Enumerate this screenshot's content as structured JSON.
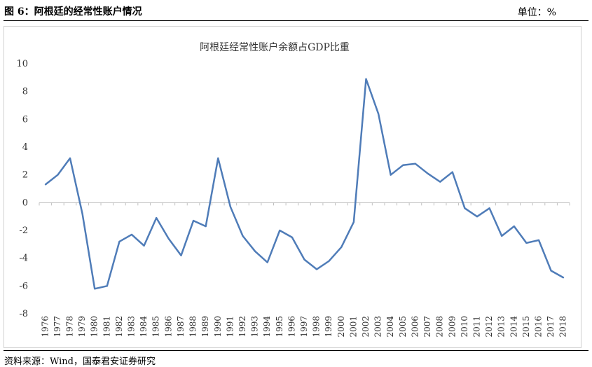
{
  "figure": {
    "title": "图 6：阿根廷的经常性账户情况",
    "unit": "单位：%",
    "source": "资料来源：Wind，国泰君安证券研究"
  },
  "chart_data": {
    "type": "line",
    "title": "阿根廷经常性账户余额占GDP比重",
    "xlabel": "",
    "ylabel": "",
    "ylim": [
      -8,
      10
    ],
    "yticks": [
      -8,
      -6,
      -4,
      -2,
      0,
      2,
      4,
      6,
      8,
      10
    ],
    "grid": false,
    "legend": "none",
    "x": [
      "1976",
      "1977",
      "1978",
      "1979",
      "1980",
      "1981",
      "1982",
      "1983",
      "1984",
      "1985",
      "1986",
      "1987",
      "1988",
      "1989",
      "1990",
      "1991",
      "1992",
      "1993",
      "1994",
      "1995",
      "1996",
      "1997",
      "1998",
      "1999",
      "2000",
      "2001",
      "2002",
      "2003",
      "2004",
      "2005",
      "2006",
      "2007",
      "2008",
      "2009",
      "2010",
      "2011",
      "2012",
      "2013",
      "2014",
      "2015",
      "2016",
      "2017",
      "2018"
    ],
    "series": [
      {
        "color": "#4f7cb8",
        "values": [
          1.3,
          2.0,
          3.2,
          -0.8,
          -6.2,
          -6.0,
          -2.8,
          -2.3,
          -3.1,
          -1.1,
          -2.6,
          -3.8,
          -1.3,
          -1.7,
          3.2,
          -0.3,
          -2.4,
          -3.5,
          -4.3,
          -2.0,
          -2.5,
          -4.1,
          -4.8,
          -4.2,
          -3.2,
          -1.4,
          8.9,
          6.4,
          2.0,
          2.7,
          2.8,
          2.1,
          1.5,
          2.2,
          -0.4,
          -1.0,
          -0.4,
          -2.4,
          -1.7,
          -2.9,
          -2.7,
          -4.9,
          -5.4
        ]
      }
    ]
  }
}
